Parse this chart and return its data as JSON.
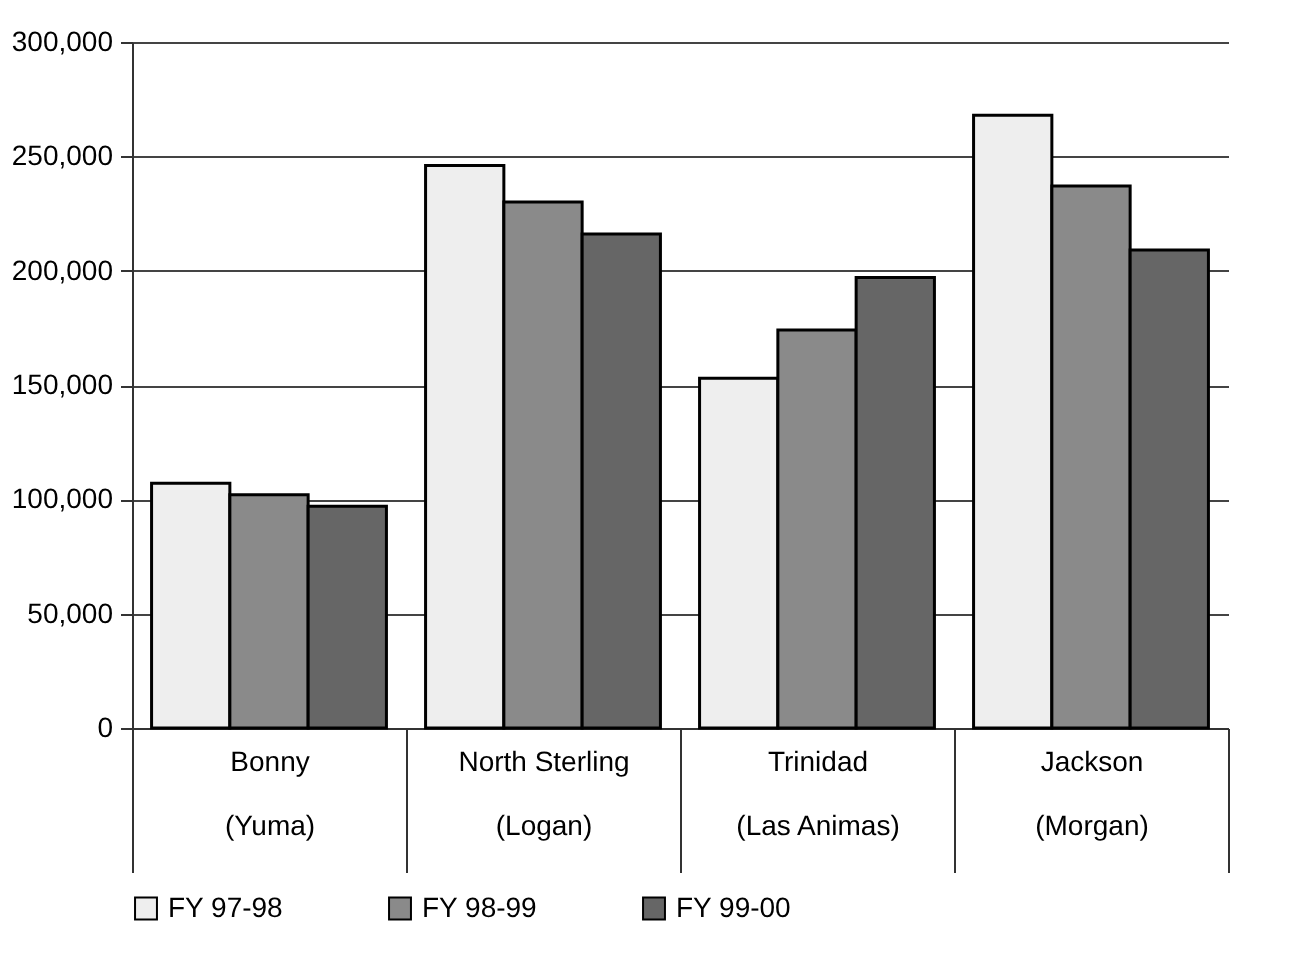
{
  "chart_data": {
    "type": "bar",
    "categories": [
      "Bonny\n(Yuma)",
      "North Sterling\n(Logan)",
      "Trinidad\n(Las Animas)",
      "Jackson\n(Morgan)"
    ],
    "series": [
      {
        "name": "FY 97-98",
        "color": "#eeeeee",
        "values": [
          107000,
          246000,
          153000,
          268000
        ]
      },
      {
        "name": "FY 98-99",
        "color": "#8a8a8a",
        "values": [
          102000,
          230000,
          174000,
          237000
        ]
      },
      {
        "name": "FY 99-00",
        "color": "#666666",
        "values": [
          97000,
          216000,
          197000,
          209000
        ]
      }
    ],
    "ylim": [
      0,
      300000
    ],
    "yticks": [
      0,
      {
        "value": 50000,
        "label": "50,000"
      },
      {
        "value": 100000,
        "label": "100,000"
      },
      {
        "value": 150000,
        "label": "150,000"
      },
      {
        "value": 200000,
        "label": "200,000"
      },
      {
        "value": 250000,
        "label": "250,000"
      },
      {
        "value": 300000,
        "label": "300,000"
      }
    ],
    "grid": "y",
    "legend": "bottom"
  }
}
